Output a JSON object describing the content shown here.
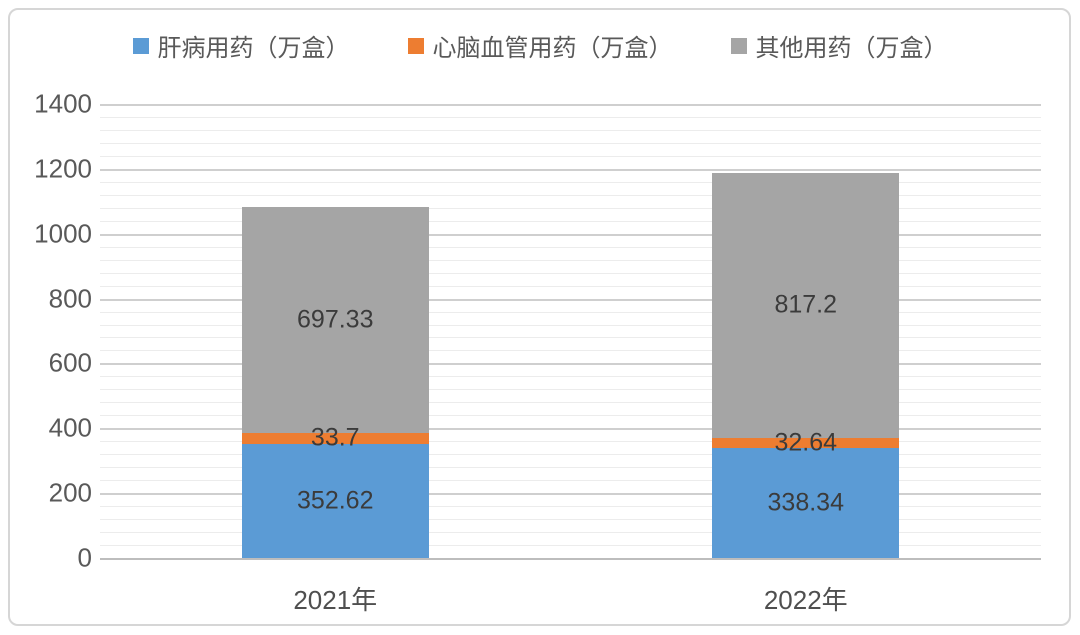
{
  "chart_data": {
    "type": "bar",
    "stacked": true,
    "title": "",
    "xlabel": "",
    "ylabel": "",
    "categories": [
      "2021年",
      "2022年"
    ],
    "series": [
      {
        "key": "liver-medication",
        "name": "肝病用药（万盒）",
        "color": "#5B9BD5",
        "values": [
          352.62,
          338.34
        ]
      },
      {
        "key": "cardio-cerebrovascular-medication",
        "name": "心脑血管用药（万盒）",
        "color": "#ED7D31",
        "values": [
          33.7,
          32.64
        ]
      },
      {
        "key": "other-medication",
        "name": "其他用药（万盒）",
        "color": "#A5A5A5",
        "values": [
          697.33,
          817.2
        ]
      }
    ],
    "value_labels": [
      [
        "352.62",
        "33.7",
        "697.33"
      ],
      [
        "338.34",
        "32.64",
        "817.2"
      ]
    ],
    "y_tick_labels": [
      "0",
      "200",
      "400",
      "600",
      "800",
      "1000",
      "1200",
      "1400"
    ],
    "ylim": [
      0,
      1400
    ],
    "major_unit": 200,
    "minor_unit": 40,
    "grid": true,
    "legend_position": "top"
  }
}
